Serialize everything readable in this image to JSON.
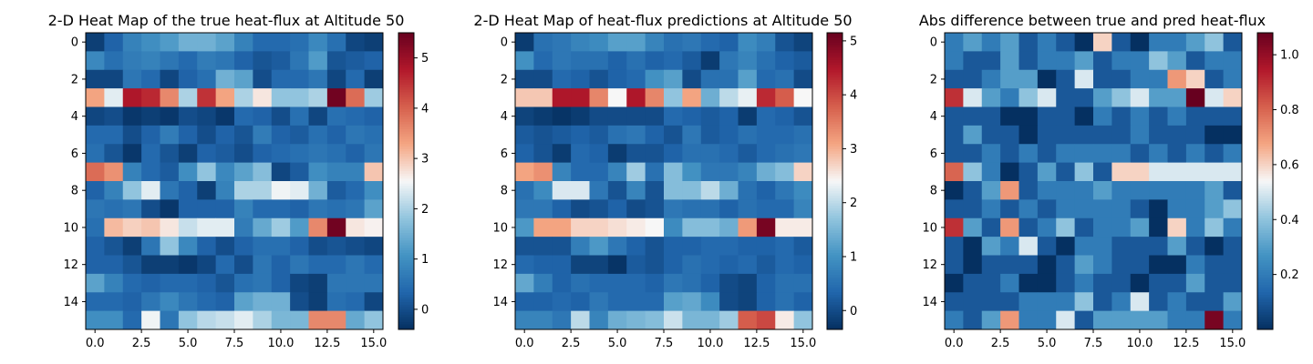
{
  "chart_data": [
    {
      "type": "heatmap",
      "title": "2-D Heat Map of the true heat-flux at Altitude 50",
      "xlabel": "",
      "ylabel": "",
      "x_ticks": [
        "0.0",
        "2.5",
        "5.0",
        "7.5",
        "10.0",
        "12.5",
        "15.0"
      ],
      "y_ticks": [
        "0",
        "2",
        "4",
        "6",
        "8",
        "10",
        "12",
        "14"
      ],
      "colorbar": {
        "min": -0.4,
        "max": 5.5,
        "ticks": [
          "0",
          "1",
          "2",
          "3",
          "4",
          "5"
        ],
        "colormap": "RdBu_r"
      },
      "values": [
        [
          -0.2,
          0.3,
          0.8,
          1.0,
          1.2,
          1.5,
          1.5,
          1.3,
          0.8,
          0.4,
          0.4,
          0.5,
          0.9,
          0.5,
          -0.1,
          -0.2
        ],
        [
          0.9,
          0.5,
          0.7,
          0.8,
          0.6,
          0.4,
          0.7,
          0.6,
          0.3,
          0.1,
          0.2,
          0.6,
          1.2,
          0.1,
          0.2,
          0.3
        ],
        [
          -0.1,
          -0.1,
          0.6,
          0.4,
          -0.1,
          0.3,
          0.5,
          1.5,
          1.3,
          0.0,
          0.4,
          0.4,
          0.6,
          -0.1,
          0.4,
          -0.2
        ],
        [
          3.3,
          2.4,
          4.8,
          4.6,
          3.6,
          2.0,
          4.5,
          3.3,
          2.0,
          2.7,
          1.8,
          1.8,
          2.0,
          5.4,
          3.9,
          1.9
        ],
        [
          -0.1,
          0.0,
          -0.3,
          -0.2,
          -0.3,
          0.0,
          -0.1,
          -0.3,
          0.4,
          0.3,
          0.0,
          0.5,
          -0.1,
          0.5,
          0.4,
          0.3
        ],
        [
          0.4,
          0.4,
          0.0,
          0.3,
          0.7,
          0.3,
          0.0,
          0.3,
          0.1,
          0.7,
          0.3,
          0.2,
          0.5,
          0.3,
          0.6,
          0.5
        ],
        [
          0.5,
          0.1,
          -0.3,
          0.4,
          0.1,
          -0.2,
          0.3,
          0.2,
          0.0,
          0.3,
          0.4,
          0.5,
          0.6,
          0.5,
          0.3,
          0.6
        ],
        [
          3.9,
          3.5,
          0.8,
          0.4,
          0.2,
          1.0,
          1.8,
          0.9,
          1.3,
          1.7,
          -0.1,
          0.2,
          1.0,
          0.8,
          0.8,
          3.0
        ],
        [
          0.3,
          0.8,
          1.8,
          2.4,
          0.6,
          0.3,
          -0.2,
          0.8,
          2.0,
          2.0,
          2.5,
          2.4,
          1.5,
          0.2,
          0.4,
          1.0
        ],
        [
          0.6,
          0.5,
          0.6,
          0.0,
          -0.3,
          0.3,
          0.3,
          0.3,
          0.8,
          0.4,
          0.4,
          0.3,
          0.6,
          0.5,
          0.6,
          1.3
        ],
        [
          0.5,
          3.1,
          2.9,
          3.0,
          2.7,
          2.2,
          2.4,
          2.4,
          0.7,
          1.4,
          1.9,
          1.2,
          3.6,
          5.4,
          2.7,
          2.6
        ],
        [
          0.3,
          0.1,
          -0.2,
          0.6,
          1.8,
          0.9,
          0.3,
          0.0,
          0.3,
          0.5,
          0.5,
          0.3,
          0.0,
          0.1,
          0.0,
          -0.1
        ],
        [
          0.3,
          0.3,
          0.1,
          -0.2,
          -0.2,
          -0.3,
          -0.1,
          0.4,
          0.0,
          0.6,
          0.3,
          0.6,
          0.4,
          0.4,
          0.6,
          0.4
        ],
        [
          1.3,
          0.8,
          0.4,
          0.3,
          0.4,
          0.4,
          0.3,
          0.1,
          0.5,
          0.6,
          0.3,
          -0.1,
          -0.2,
          0.6,
          0.6,
          0.6
        ],
        [
          0.4,
          0.4,
          0.3,
          0.6,
          0.9,
          0.6,
          0.4,
          0.3,
          1.3,
          1.5,
          1.5,
          0.0,
          -0.2,
          0.5,
          0.4,
          -0.1
        ],
        [
          1.0,
          1.0,
          0.4,
          2.5,
          0.6,
          1.8,
          2.1,
          2.2,
          2.4,
          2.0,
          1.6,
          1.6,
          3.6,
          3.6,
          1.4,
          1.8
        ]
      ]
    },
    {
      "type": "heatmap",
      "title": "2-D Heat Map of heat-flux predictions at Altitude 50",
      "xlabel": "",
      "ylabel": "",
      "x_ticks": [
        "0.0",
        "2.5",
        "5.0",
        "7.5",
        "10.0",
        "12.5",
        "15.0"
      ],
      "y_ticks": [
        "0",
        "2",
        "4",
        "6",
        "8",
        "10",
        "12",
        "14"
      ],
      "colorbar": {
        "min": -0.35,
        "max": 5.15,
        "ticks": [
          "0",
          "1",
          "2",
          "3",
          "4",
          "5"
        ],
        "colormap": "RdBu_r"
      },
      "values": [
        [
          -0.2,
          0.5,
          0.6,
          0.8,
          0.9,
          1.2,
          1.2,
          0.8,
          0.5,
          0.6,
          0.4,
          0.3,
          0.9,
          0.7,
          0.1,
          -0.1
        ],
        [
          1.0,
          0.4,
          0.6,
          0.5,
          0.5,
          0.3,
          0.5,
          0.3,
          0.4,
          0.2,
          -0.2,
          0.6,
          0.8,
          0.5,
          0.3,
          0.2
        ],
        [
          0.0,
          0.0,
          0.4,
          0.3,
          0.1,
          0.3,
          0.4,
          1.0,
          1.2,
          0.0,
          0.5,
          0.5,
          1.2,
          0.4,
          0.5,
          0.0
        ],
        [
          2.8,
          2.8,
          4.5,
          4.5,
          3.4,
          2.4,
          4.5,
          3.4,
          1.7,
          3.1,
          1.4,
          2.0,
          2.3,
          4.3,
          3.8,
          2.4
        ],
        [
          -0.1,
          -0.2,
          -0.3,
          -0.2,
          0.0,
          0.0,
          0.0,
          0.0,
          0.4,
          0.3,
          0.2,
          0.3,
          -0.2,
          0.4,
          0.3,
          0.1
        ],
        [
          0.2,
          0.1,
          0.2,
          0.3,
          0.2,
          0.5,
          0.6,
          0.3,
          0.1,
          0.6,
          0.2,
          0.3,
          0.5,
          0.4,
          0.4,
          0.5
        ],
        [
          0.3,
          0.1,
          -0.2,
          0.4,
          0.3,
          -0.2,
          0.1,
          0.1,
          0.3,
          0.5,
          0.5,
          0.4,
          0.2,
          0.4,
          0.5,
          0.6
        ],
        [
          3.1,
          3.3,
          0.8,
          0.4,
          0.4,
          0.8,
          1.8,
          0.5,
          1.6,
          1.0,
          0.6,
          0.6,
          0.8,
          1.4,
          1.6,
          2.7
        ],
        [
          0.5,
          0.9,
          2.2,
          2.2,
          0.6,
          0.1,
          0.8,
          0.1,
          1.6,
          1.6,
          2.0,
          1.4,
          0.5,
          0.3,
          0.6,
          0.9
        ],
        [
          0.6,
          0.6,
          0.3,
          0.0,
          0.1,
          0.3,
          0.0,
          0.1,
          0.6,
          0.5,
          0.5,
          0.3,
          0.5,
          0.4,
          0.4,
          0.8
        ],
        [
          1.1,
          3.1,
          3.1,
          2.7,
          2.7,
          2.6,
          2.5,
          2.4,
          0.9,
          1.6,
          1.6,
          1.4,
          3.2,
          5.0,
          2.5,
          2.5
        ],
        [
          0.1,
          0.1,
          0.1,
          0.7,
          1.1,
          0.6,
          0.3,
          0.1,
          0.3,
          0.3,
          0.4,
          0.4,
          0.3,
          0.3,
          0.4,
          0.2
        ],
        [
          0.4,
          0.3,
          0.3,
          -0.1,
          -0.1,
          -0.3,
          0.2,
          0.1,
          0.3,
          0.5,
          0.4,
          0.3,
          0.4,
          0.2,
          0.4,
          0.3
        ],
        [
          1.3,
          0.7,
          0.3,
          0.5,
          0.4,
          0.4,
          0.4,
          0.3,
          0.6,
          0.5,
          0.3,
          0.0,
          -0.1,
          0.3,
          0.5,
          0.5
        ],
        [
          0.3,
          0.3,
          0.4,
          0.3,
          0.6,
          0.4,
          0.4,
          0.4,
          1.2,
          1.3,
          0.9,
          0.0,
          -0.1,
          0.3,
          0.5,
          0.3
        ],
        [
          0.8,
          0.8,
          0.6,
          2.0,
          0.8,
          1.4,
          1.5,
          1.6,
          2.1,
          1.5,
          1.5,
          1.8,
          3.8,
          4.0,
          2.5,
          1.7
        ]
      ]
    },
    {
      "type": "heatmap",
      "title": "Abs difference between true and pred heat-flux",
      "xlabel": "",
      "ylabel": "",
      "x_ticks": [
        "0.0",
        "2.5",
        "5.0",
        "7.5",
        "10.0",
        "12.5",
        "15.0"
      ],
      "y_ticks": [
        "0",
        "2",
        "4",
        "6",
        "8",
        "10",
        "12",
        "14"
      ],
      "colorbar": {
        "min": 0.0,
        "max": 1.08,
        "ticks": [
          "0.2",
          "0.4",
          "0.6",
          "0.8",
          "1.0"
        ],
        "colormap": "RdBu_r"
      },
      "values": [
        [
          0.2,
          0.3,
          0.2,
          0.3,
          0.1,
          0.2,
          0.1,
          0.0,
          0.6,
          0.1,
          0.0,
          0.2,
          0.2,
          0.3,
          0.4,
          0.1
        ],
        [
          0.2,
          0.1,
          0.1,
          0.3,
          0.1,
          0.2,
          0.2,
          0.3,
          0.1,
          0.2,
          0.2,
          0.4,
          0.3,
          0.1,
          0.2,
          0.2
        ],
        [
          0.1,
          0.1,
          0.2,
          0.3,
          0.3,
          0.0,
          0.1,
          0.5,
          0.1,
          0.1,
          0.2,
          0.2,
          0.7,
          0.6,
          0.1,
          0.2
        ],
        [
          0.9,
          0.5,
          0.3,
          0.2,
          0.4,
          0.5,
          0.1,
          0.1,
          0.3,
          0.4,
          0.5,
          0.3,
          0.3,
          1.08,
          0.5,
          0.6
        ],
        [
          0.1,
          0.1,
          0.1,
          0.0,
          0.0,
          0.1,
          0.1,
          0.0,
          0.2,
          0.1,
          0.2,
          0.1,
          0.2,
          0.1,
          0.1,
          0.1
        ],
        [
          0.1,
          0.3,
          0.1,
          0.1,
          0.0,
          0.1,
          0.1,
          0.1,
          0.1,
          0.1,
          0.2,
          0.1,
          0.1,
          0.1,
          0.0,
          0.0
        ],
        [
          0.1,
          0.1,
          0.2,
          0.1,
          0.2,
          0.1,
          0.2,
          0.2,
          0.2,
          0.2,
          0.1,
          0.2,
          0.1,
          0.2,
          0.1,
          0.2
        ],
        [
          0.8,
          0.4,
          0.2,
          0.0,
          0.1,
          0.3,
          0.1,
          0.4,
          0.1,
          0.6,
          0.6,
          0.5,
          0.5,
          0.5,
          0.5,
          0.5
        ],
        [
          0.0,
          0.1,
          0.3,
          0.7,
          0.1,
          0.2,
          0.2,
          0.2,
          0.3,
          0.2,
          0.2,
          0.2,
          0.2,
          0.2,
          0.3,
          0.1
        ],
        [
          0.1,
          0.1,
          0.2,
          0.1,
          0.2,
          0.1,
          0.2,
          0.2,
          0.2,
          0.2,
          0.1,
          0.0,
          0.2,
          0.2,
          0.3,
          0.4
        ],
        [
          0.9,
          0.3,
          0.1,
          0.7,
          0.1,
          0.2,
          0.4,
          0.1,
          0.2,
          0.2,
          0.3,
          0.0,
          0.6,
          0.2,
          0.4,
          0.2
        ],
        [
          0.1,
          0.0,
          0.3,
          0.2,
          0.5,
          0.1,
          0.0,
          0.2,
          0.2,
          0.1,
          0.1,
          0.1,
          0.3,
          0.1,
          0.0,
          0.1
        ],
        [
          0.1,
          0.0,
          0.1,
          0.1,
          0.1,
          0.0,
          0.1,
          0.3,
          0.2,
          0.1,
          0.1,
          0.0,
          0.0,
          0.2,
          0.1,
          0.1
        ],
        [
          0.0,
          0.1,
          0.1,
          0.2,
          0.0,
          0.0,
          0.1,
          0.2,
          0.1,
          0.1,
          0.0,
          0.1,
          0.1,
          0.3,
          0.1,
          0.1
        ],
        [
          0.1,
          0.1,
          0.1,
          0.1,
          0.2,
          0.2,
          0.2,
          0.4,
          0.1,
          0.2,
          0.5,
          0.1,
          0.2,
          0.1,
          0.1,
          0.3
        ],
        [
          0.2,
          0.1,
          0.3,
          0.7,
          0.2,
          0.2,
          0.5,
          0.1,
          0.3,
          0.3,
          0.3,
          0.3,
          0.2,
          0.2,
          1.05,
          0.2
        ]
      ]
    }
  ]
}
